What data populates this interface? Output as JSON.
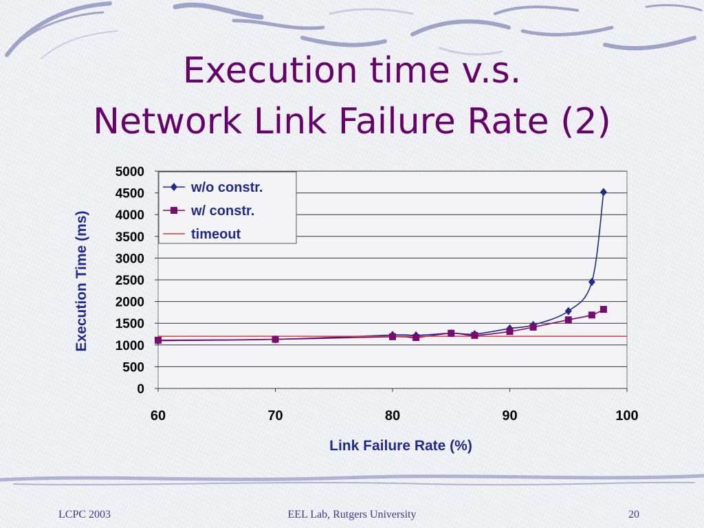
{
  "slide": {
    "title_line_1": "Execution time v.s.",
    "title_line_2": "Network Link Failure Rate (2)",
    "footer_left": "LCPC 2003",
    "footer_center": "EEL Lab, Rutgers University",
    "footer_right": "20"
  },
  "colors": {
    "title": "#66006b",
    "series_wo": "#1f2a8c",
    "series_w": "#7a0a72",
    "timeout": "#d43c3c",
    "gridline": "#333333",
    "footer": "#3a3a8a"
  },
  "chart_data": {
    "type": "line",
    "xlabel": "Link Failure Rate (%)",
    "ylabel": "Execution Time (ms)",
    "xlim": [
      60,
      100
    ],
    "ylim": [
      0,
      5000
    ],
    "x_ticks": [
      "60",
      "70",
      "80",
      "90",
      "100"
    ],
    "y_ticks": [
      "0",
      "500",
      "1000",
      "1500",
      "2000",
      "2500",
      "3000",
      "3500",
      "4000",
      "4500",
      "5000"
    ],
    "grid": true,
    "legend_position": "top-left",
    "series": [
      {
        "name": "w/o constr.",
        "marker": "diamond",
        "points": [
          [
            60,
            1100
          ],
          [
            70,
            1130
          ],
          [
            80,
            1230
          ],
          [
            82,
            1220
          ],
          [
            85,
            1270
          ],
          [
            87,
            1250
          ],
          [
            90,
            1380
          ],
          [
            92,
            1460
          ],
          [
            95,
            1780
          ],
          [
            97,
            2450
          ],
          [
            98,
            4520
          ]
        ]
      },
      {
        "name": "w/ constr.",
        "marker": "square",
        "points": [
          [
            60,
            1110
          ],
          [
            70,
            1130
          ],
          [
            80,
            1190
          ],
          [
            82,
            1170
          ],
          [
            85,
            1270
          ],
          [
            87,
            1220
          ],
          [
            90,
            1310
          ],
          [
            92,
            1410
          ],
          [
            95,
            1580
          ],
          [
            97,
            1690
          ],
          [
            98,
            1820
          ]
        ]
      },
      {
        "name": "timeout",
        "marker": "none",
        "points": [
          [
            60,
            1200
          ],
          [
            100,
            1200
          ]
        ]
      }
    ]
  }
}
